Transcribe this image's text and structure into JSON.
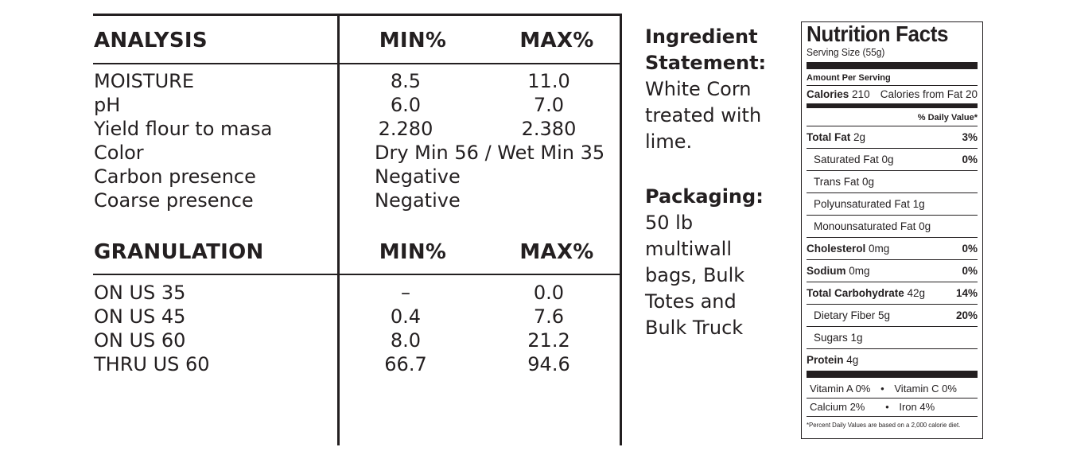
{
  "analysis": {
    "header": {
      "label": "ANALYSIS",
      "min": "MIN%",
      "max": "MAX%"
    },
    "rows": [
      {
        "label": "MOISTURE",
        "min": "8.5",
        "max": "11.0"
      },
      {
        "label": "pH",
        "min": "6.0",
        "max": "7.0"
      },
      {
        "label": "Yield flour to masa",
        "min": "2.280",
        "max": "2.380"
      },
      {
        "label": "Color",
        "value": "Dry Min 56 / Wet Min 35"
      },
      {
        "label": "Carbon presence",
        "value": "Negative"
      },
      {
        "label": "Coarse presence",
        "value": "Negative"
      }
    ]
  },
  "granulation": {
    "header": {
      "label": "GRANULATION",
      "min": "MIN%",
      "max": "MAX%"
    },
    "rows": [
      {
        "label": "ON US 35",
        "min": "–",
        "max": "0.0"
      },
      {
        "label": "ON US 45",
        "min": "0.4",
        "max": "7.6"
      },
      {
        "label": "ON US 60",
        "min": "8.0",
        "max": "21.2"
      },
      {
        "label": "THRU US 60",
        "min": "66.7",
        "max": "94.6"
      }
    ]
  },
  "ingredient": {
    "heading_line1": "Ingredient",
    "heading_line2": "Statement:",
    "text_lines": [
      "White Corn",
      "treated with",
      "lime."
    ]
  },
  "packaging": {
    "heading": "Packaging:",
    "text_lines": [
      "50 lb",
      "multiwall",
      "bags, Bulk",
      "Totes and",
      "Bulk Truck"
    ]
  },
  "nutrition": {
    "title": "Nutrition Facts",
    "serving_size": "Serving Size (55g)",
    "amount_per_serving": "Amount Per Serving",
    "calories_label": "Calories",
    "calories_value": "210",
    "calories_from_fat": "Calories from Fat 20",
    "daily_value_header": "% Daily Value*",
    "total_fat": {
      "label": "Total Fat",
      "amount": "2g",
      "pct": "3%"
    },
    "saturated_fat": {
      "label": "Saturated Fat 0g",
      "pct": "0%"
    },
    "trans_fat": {
      "label": "Trans Fat 0g"
    },
    "polyunsaturated_fat": {
      "label": "Polyunsaturated Fat 1g"
    },
    "monounsaturated_fat": {
      "label": "Monounsaturated Fat 0g"
    },
    "cholesterol": {
      "label": "Cholesterol",
      "amount": "0mg",
      "pct": "0%"
    },
    "sodium": {
      "label": "Sodium",
      "amount": "0mg",
      "pct": "0%"
    },
    "total_carb": {
      "label": "Total Carbohydrate",
      "amount": "42g",
      "pct": "14%"
    },
    "dietary_fiber": {
      "label": "Dietary Fiber 5g",
      "pct": "20%"
    },
    "sugars": {
      "label": "Sugars 1g"
    },
    "protein": {
      "label": "Protein",
      "amount": "4g"
    },
    "vitamin_a": "Vitamin A 0%",
    "vitamin_c": "Vitamin C 0%",
    "calcium": "Calcium 2%",
    "iron": "Iron 4%",
    "separator": "•",
    "footnote": "*Percent Daily Values are based on a 2,000 calorie diet."
  }
}
